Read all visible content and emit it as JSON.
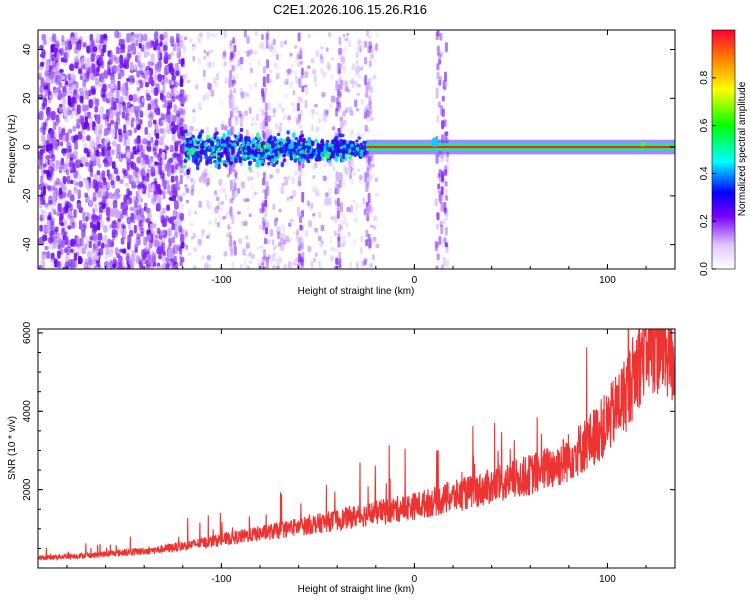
{
  "title": "C2E1.2026.106.15.26.R16",
  "chart_data": [
    {
      "type": "heatmap",
      "title": "C2E1.2026.106.15.26.R16",
      "xlabel": "Height of straight line (km)",
      "ylabel": "Frequency (Hz)",
      "xlim": [
        -195,
        135
      ],
      "ylim": [
        -50,
        48
      ],
      "x_ticks": [
        -100,
        0,
        100
      ],
      "y_ticks": [
        -40,
        -20,
        0,
        20,
        40
      ],
      "colorbar": {
        "label": "Normalized spectral amplitude",
        "range": [
          0.0,
          1.0
        ],
        "ticks": [
          0.0,
          0.2,
          0.4,
          0.6,
          0.8
        ],
        "tick_labels": [
          "0.0",
          "0.2",
          "0.4",
          "0.6",
          "0.8"
        ]
      },
      "features": {
        "carrier_frequency_hz": 0,
        "diffuse_region_x": [
          -195,
          -120
        ],
        "dense_band_x": [
          -120,
          -25
        ],
        "coherent_tone_x": [
          -25,
          135
        ]
      }
    },
    {
      "type": "line",
      "xlabel": "Height of straight line (km)",
      "ylabel": "SNR (10 * v/v)",
      "xlim": [
        -195,
        135
      ],
      "ylim": [
        0,
        6100
      ],
      "x_ticks": [
        -100,
        0,
        100
      ],
      "y_ticks": [
        2000,
        4000,
        6000
      ],
      "series": [
        {
          "name": "SNR",
          "color": "#ee3333",
          "x": [
            -195,
            -180,
            -165,
            -150,
            -135,
            -120,
            -105,
            -90,
            -75,
            -60,
            -45,
            -30,
            -15,
            0,
            15,
            30,
            45,
            60,
            75,
            90,
            100,
            110,
            120,
            130,
            135
          ],
          "y": [
            250,
            300,
            330,
            400,
            450,
            560,
            680,
            800,
            920,
            1050,
            1180,
            1320,
            1450,
            1580,
            1750,
            1950,
            2150,
            2380,
            2650,
            3200,
            3700,
            4500,
            5700,
            5600,
            5200
          ]
        }
      ]
    }
  ]
}
